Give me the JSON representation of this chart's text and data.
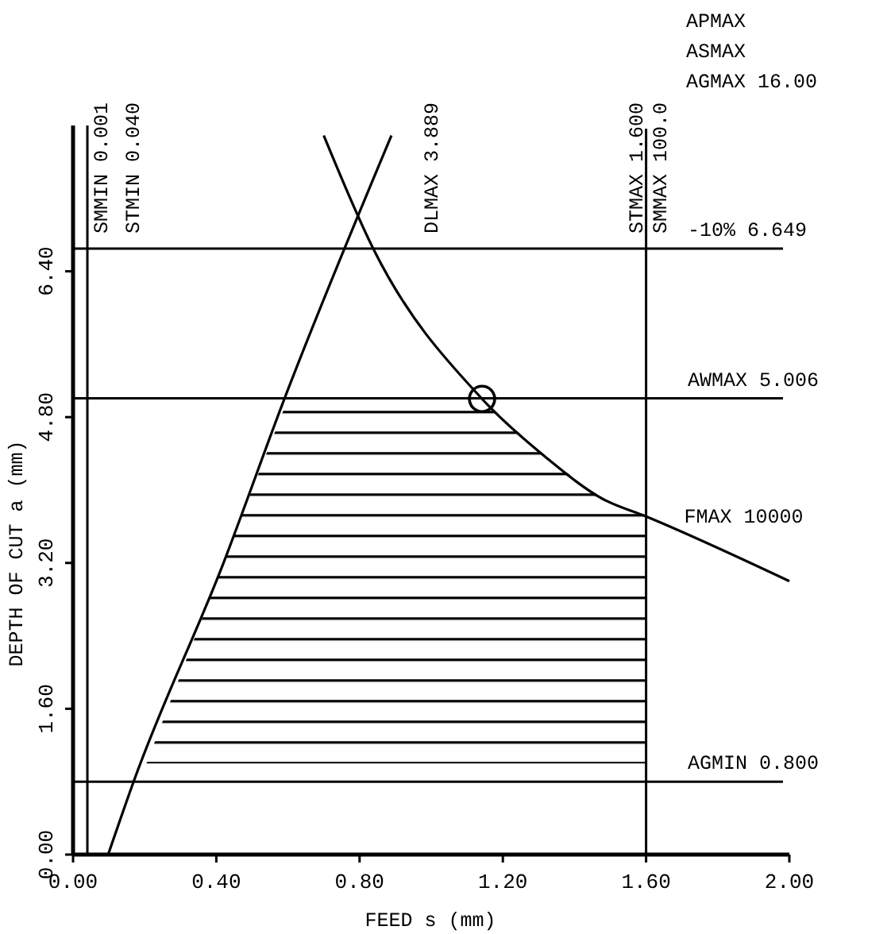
{
  "chart_data": {
    "type": "line",
    "xlabel": "FEED s (mm)",
    "ylabel": "DEPTH OF CUT a (mm)",
    "xlim": [
      0,
      2.0
    ],
    "ylim": [
      0,
      8.0
    ],
    "xticks": [
      {
        "value": 0,
        "label": "0.00"
      },
      {
        "value": 0.4,
        "label": "0.40"
      },
      {
        "value": 0.8,
        "label": "0.80"
      },
      {
        "value": 1.2,
        "label": "1.20"
      },
      {
        "value": 1.6,
        "label": "1.60"
      },
      {
        "value": 2.0,
        "label": "2.00"
      }
    ],
    "yticks": [
      {
        "value": 0,
        "label": "0.00"
      },
      {
        "value": 1.6,
        "label": "1.60"
      },
      {
        "value": 3.2,
        "label": "3.20"
      },
      {
        "value": 4.8,
        "label": "4.80"
      },
      {
        "value": 6.4,
        "label": "6.40"
      }
    ],
    "grid": false,
    "legend": false,
    "marker": "none",
    "line_style": "solid",
    "series": [
      {
        "color": "#000000",
        "x": [
          0.098,
          0.169,
          0.42,
          0.59,
          0.889
        ],
        "values": [
          0,
          0.8,
          3.2,
          5.0,
          7.89
        ]
      },
      {
        "color": "#000000",
        "x": [
          0.7,
          0.838,
          1.142,
          1.32,
          1.48,
          1.6,
          2.0
        ],
        "values": [
          7.89,
          6.65,
          5.0,
          4.36,
          3.9,
          3.71,
          3.0
        ]
      },
      {
        "type": "area",
        "color": "#000000",
        "x": [
          0.205,
          0.42,
          0.6,
          1.142,
          1.32,
          1.48,
          1.6,
          1.6
        ],
        "values": [
          1.0,
          3.2,
          5.0,
          5.0,
          4.36,
          3.9,
          3.71,
          1.0
        ]
      },
      {
        "type": "scatter",
        "color": "#000000",
        "marker": "circle",
        "x": [
          1.142
        ],
        "values": [
          5.0
        ]
      }
    ],
    "ref_lines": [
      {
        "axis": "x",
        "value": 0.04,
        "label": "STMIN 0.040"
      },
      {
        "axis": "x",
        "value": 1.6,
        "label": "STMAX 1.600"
      },
      {
        "axis": "y",
        "value": 6.649,
        "label": "-10% 6.649"
      },
      {
        "axis": "y",
        "value": 5.006,
        "label": "AWMAX 5.006"
      },
      {
        "axis": "y",
        "value": 0.8,
        "label": "AGMIN 0.800"
      }
    ],
    "annotations": [
      "SMMIN 0.001",
      "SMMAX 100.0",
      "DLMAX 3.889",
      "APMAX",
      "ASMAX",
      "AGMAX 16.00",
      {
        "text": "FMAX 10000",
        "x": 1.6,
        "y": 3.71
      }
    ]
  }
}
